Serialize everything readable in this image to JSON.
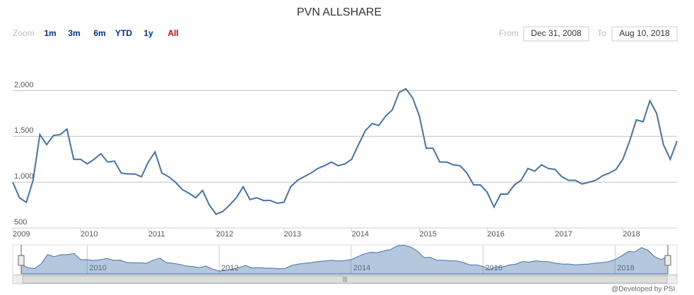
{
  "chart_data": {
    "type": "line",
    "title": "PVN ALLSHARE",
    "zoom_label": "Zoom",
    "buttons": [
      "1m",
      "3m",
      "6m",
      "YTD",
      "1y",
      "All"
    ],
    "selected_button": 5,
    "from_label": "From",
    "from_date": "Dec 31, 2008",
    "to_label": "To",
    "to_date": "Aug 10, 2018",
    "credit": "@Developed by PSI.",
    "x": [
      2009,
      2009.1,
      2009.2,
      2009.3,
      2009.4,
      2009.5,
      2009.6,
      2009.7,
      2009.8,
      2009.9,
      2010,
      2010.1,
      2010.2,
      2010.3,
      2010.4,
      2010.5,
      2010.6,
      2010.7,
      2010.8,
      2010.9,
      2011,
      2011.1,
      2011.2,
      2011.3,
      2011.4,
      2011.5,
      2011.6,
      2011.7,
      2011.8,
      2011.9,
      2012,
      2012.1,
      2012.2,
      2012.3,
      2012.4,
      2012.5,
      2012.6,
      2012.7,
      2012.8,
      2012.9,
      2013,
      2013.1,
      2013.2,
      2013.3,
      2013.4,
      2013.5,
      2013.6,
      2013.7,
      2013.8,
      2013.9,
      2014,
      2014.1,
      2014.2,
      2014.3,
      2014.4,
      2014.5,
      2014.6,
      2014.7,
      2014.8,
      2014.9,
      2015,
      2015.1,
      2015.2,
      2015.3,
      2015.4,
      2015.5,
      2015.6,
      2015.7,
      2015.8,
      2015.9,
      2016,
      2016.1,
      2016.2,
      2016.3,
      2016.4,
      2016.5,
      2016.6,
      2016.7,
      2016.8,
      2016.9,
      2017,
      2017.1,
      2017.2,
      2017.3,
      2017.4,
      2017.5,
      2017.6,
      2017.7,
      2017.8,
      2017.9,
      2018,
      2018.1,
      2018.2,
      2018.3,
      2018.4,
      2018.5,
      2018.6,
      2018.7,
      2018.8
    ],
    "series": [
      {
        "name": "PVN ALLSHARE",
        "color": "#4572a7",
        "values": [
          1000,
          830,
          780,
          1020,
          1520,
          1410,
          1510,
          1520,
          1580,
          1250,
          1250,
          1200,
          1250,
          1310,
          1220,
          1230,
          1100,
          1090,
          1090,
          1060,
          1220,
          1330,
          1100,
          1060,
          1000,
          920,
          880,
          830,
          910,
          750,
          650,
          680,
          750,
          830,
          950,
          810,
          830,
          800,
          800,
          770,
          780,
          950,
          1020,
          1060,
          1100,
          1150,
          1180,
          1220,
          1180,
          1200,
          1250,
          1410,
          1560,
          1640,
          1620,
          1720,
          1790,
          1980,
          2020,
          1920,
          1720,
          1370,
          1370,
          1220,
          1220,
          1190,
          1180,
          1100,
          970,
          970,
          890,
          730,
          870,
          870,
          970,
          1020,
          1150,
          1120,
          1190,
          1150,
          1140,
          1060,
          1020,
          1020,
          980,
          1000,
          1020,
          1070,
          1100,
          1140,
          1250,
          1450,
          1680,
          1660,
          1890,
          1750,
          1410,
          1250,
          1450
        ]
      }
    ],
    "xlim": [
      2009,
      2018.8
    ],
    "xticks": [
      2009,
      2010,
      2011,
      2012,
      2013,
      2014,
      2015,
      2016,
      2017,
      2018
    ],
    "ylim": [
      500,
      2250
    ],
    "yticks": [
      500,
      {
        "value": 1000,
        "label": "1,000"
      },
      {
        "value": 1500,
        "label": "1,500"
      },
      {
        "value": 2000,
        "label": "2,000"
      }
    ],
    "grid": true,
    "navigator": {
      "xticks": [
        2010,
        2012,
        2014,
        2016,
        2018
      ]
    }
  }
}
